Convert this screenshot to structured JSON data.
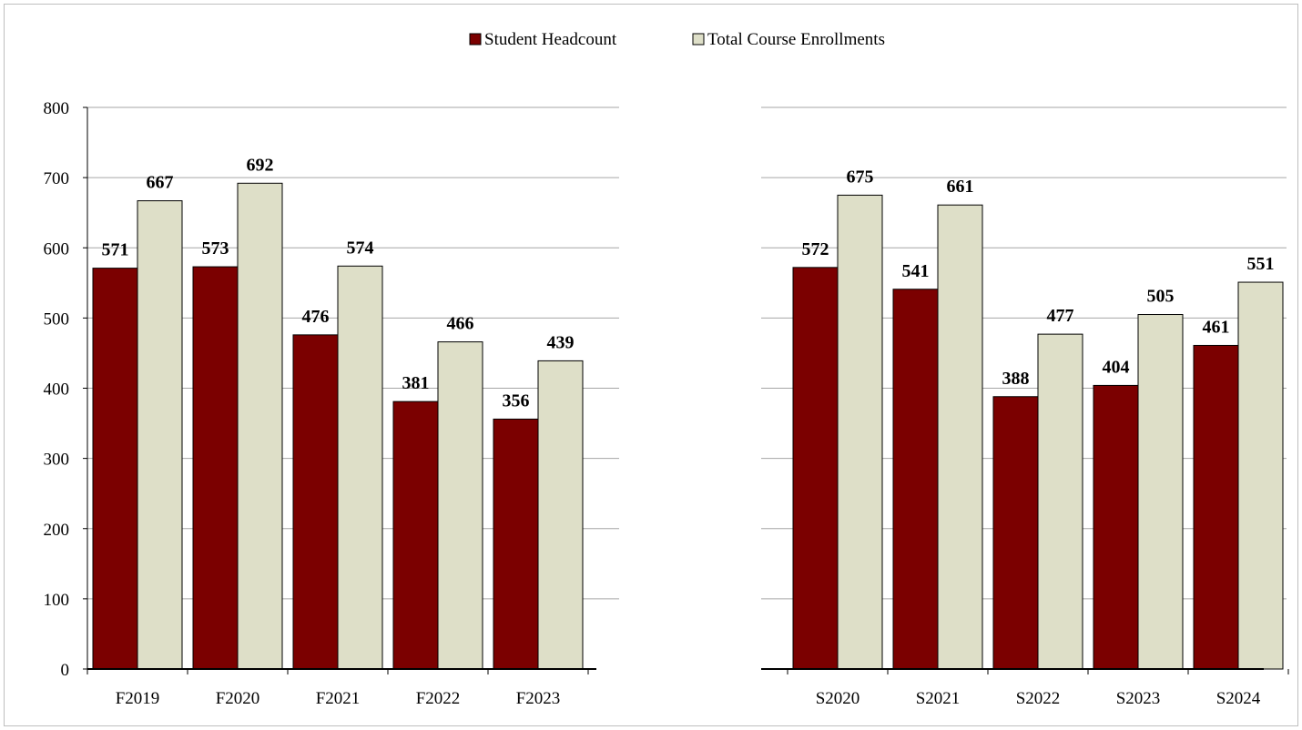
{
  "colors": {
    "headcount": "#7b0000",
    "enrollments": "#dedfc8",
    "grid": "#a6a6a6",
    "axis": "#000000"
  },
  "legend": [
    {
      "label": "Student Headcount",
      "color": "#7b0000"
    },
    {
      "label": "Total Course Enrollments",
      "color": "#dedfc8"
    }
  ],
  "chart_data": [
    {
      "type": "bar",
      "categories": [
        "F2019",
        "F2020",
        "F2021",
        "F2022",
        "F2023"
      ],
      "series": [
        {
          "name": "Student Headcount",
          "values": [
            571,
            573,
            476,
            381,
            356
          ]
        },
        {
          "name": "Total Course Enrollments",
          "values": [
            667,
            692,
            574,
            466,
            439
          ]
        }
      ],
      "ylim": [
        0,
        800
      ],
      "yticks": [
        0,
        100,
        200,
        300,
        400,
        500,
        600,
        700,
        800
      ],
      "grid": true,
      "legend_position": "top-center"
    },
    {
      "type": "bar",
      "categories": [
        "S2020",
        "S2021",
        "S2022",
        "S2023",
        "S2024"
      ],
      "series": [
        {
          "name": "Student Headcount",
          "values": [
            572,
            541,
            388,
            404,
            461
          ]
        },
        {
          "name": "Total Course Enrollments",
          "values": [
            675,
            661,
            477,
            505,
            551
          ]
        }
      ],
      "ylim": [
        0,
        800
      ],
      "yticks": [],
      "grid": true,
      "legend_position": "top-center"
    }
  ]
}
